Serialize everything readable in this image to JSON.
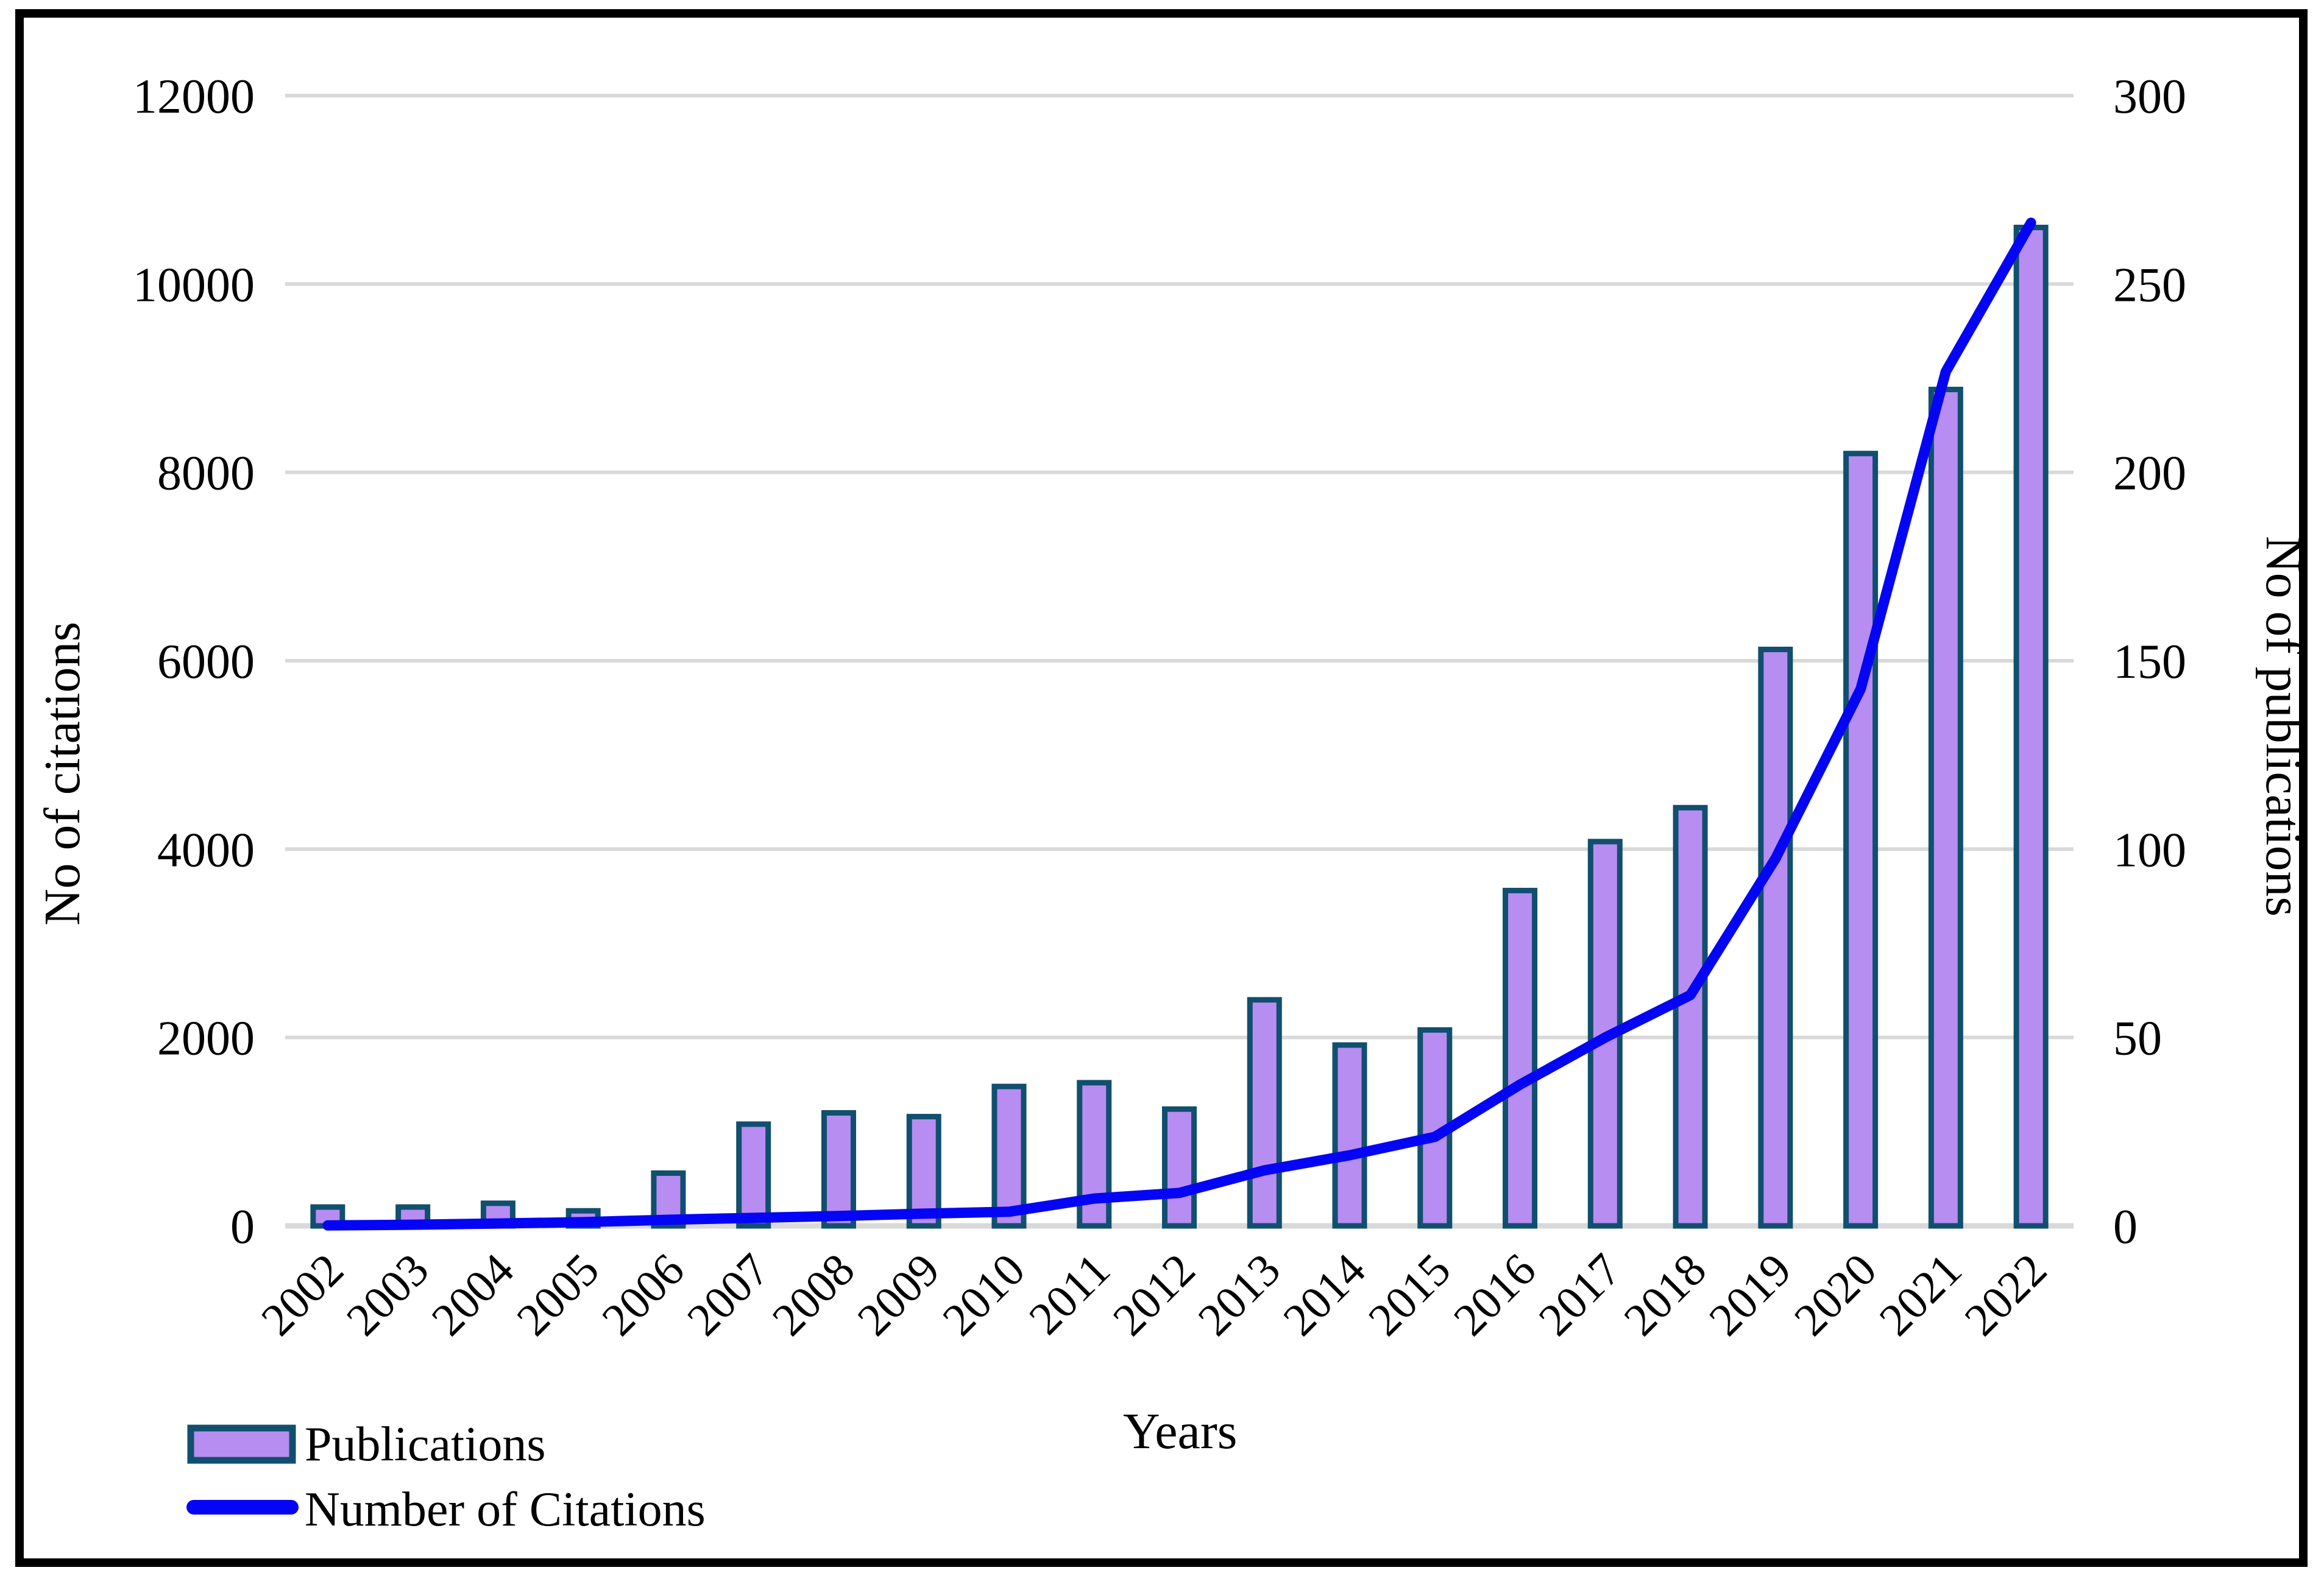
{
  "chart_data": {
    "type": "combo-bar-line",
    "categories": [
      "2002",
      "2003",
      "2004",
      "2005",
      "2006",
      "2007",
      "2008",
      "2009",
      "2010",
      "2011",
      "2012",
      "2013",
      "2014",
      "2015",
      "2016",
      "2017",
      "2018",
      "2019",
      "2020",
      "2021",
      "2022"
    ],
    "series": [
      {
        "name": "Publications",
        "type": "bar",
        "axis": "right",
        "values": [
          5,
          5,
          6,
          4,
          14,
          27,
          30,
          29,
          37,
          38,
          31,
          60,
          48,
          52,
          89,
          102,
          111,
          153,
          205,
          222,
          265
        ]
      },
      {
        "name": "Number of Citations",
        "type": "line",
        "axis": "left",
        "values": [
          5,
          12,
          25,
          40,
          65,
          85,
          105,
          130,
          150,
          290,
          350,
          590,
          750,
          945,
          1500,
          2000,
          2450,
          3900,
          5700,
          9070,
          10650
        ]
      }
    ],
    "left_axis": {
      "title": "No of citations",
      "ticks": [
        0,
        2000,
        4000,
        6000,
        8000,
        10000,
        12000
      ],
      "range": [
        0,
        12000
      ]
    },
    "right_axis": {
      "title": "No of publications",
      "ticks": [
        0,
        50,
        100,
        150,
        200,
        250,
        300
      ],
      "range": [
        0,
        300
      ]
    },
    "xlabel": "Years",
    "grid": "horizontal",
    "legend_position": "bottom-left",
    "legend": [
      {
        "label": "Publications",
        "swatch": "bar"
      },
      {
        "label": "Number of Citations",
        "swatch": "line"
      }
    ],
    "colors": {
      "bar_fill": "#B78DF2",
      "bar_border": "#114F6E",
      "line": "#0505F5",
      "gridline": "#D9D9D9",
      "axis_line": "#D9D9D9",
      "text": "#000000",
      "figure_border": "#000000",
      "background": "#FFFFFF"
    }
  }
}
